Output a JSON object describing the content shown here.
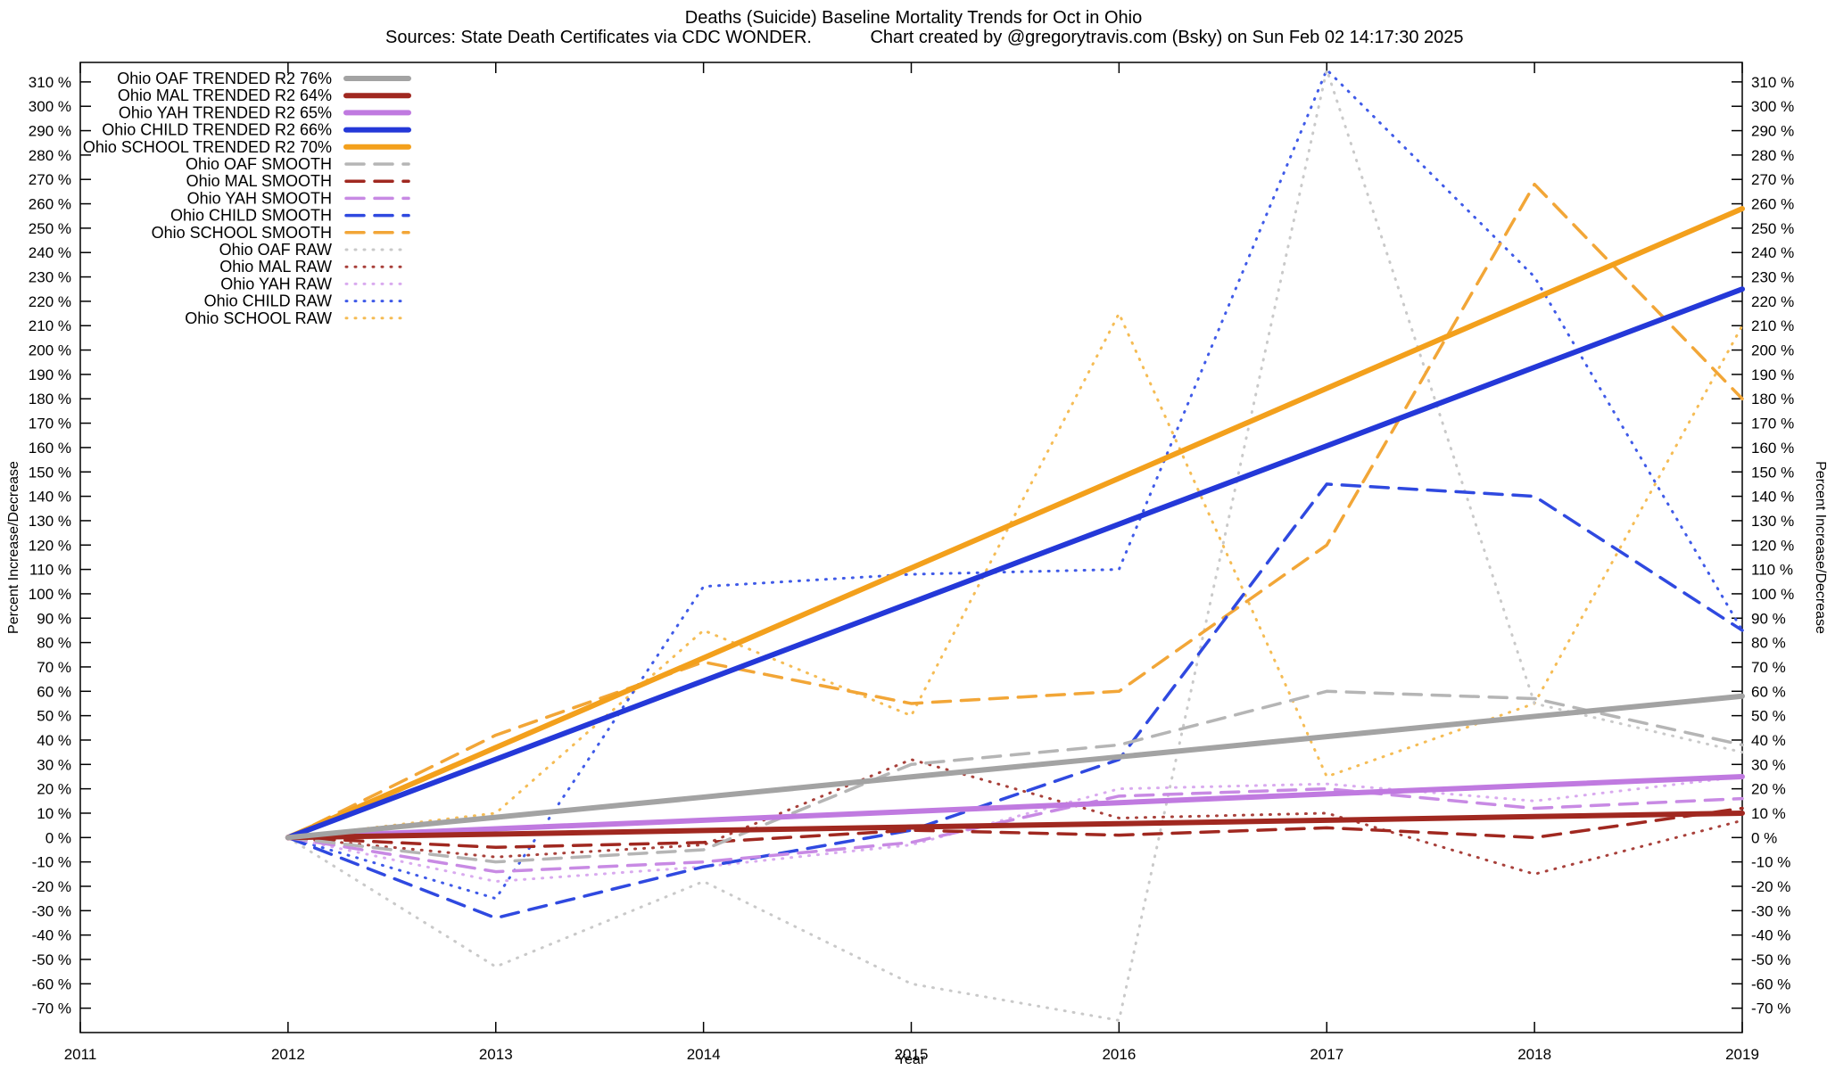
{
  "chart_data": {
    "type": "line",
    "title": "Deaths (Suicide)  Baseline Mortality Trends for Oct in Ohio",
    "subtitle_left": "Sources: State Death Certificates via CDC WONDER.",
    "subtitle_right": "Chart created by @gregorytravis.com (Bsky) on Sun Feb 02 14:17:30 2025",
    "xlabel": "Year",
    "ylabel_left": "Percent Increase/Decrease",
    "ylabel_right": "Percent Increase/Decrease",
    "xlim": [
      2011,
      2019
    ],
    "ylim": [
      -80,
      318
    ],
    "x_ticks": [
      2011,
      2012,
      2013,
      2014,
      2015,
      2016,
      2017,
      2018,
      2019
    ],
    "y_ticks": [
      -70,
      -60,
      -50,
      -40,
      -30,
      -20,
      -10,
      0,
      10,
      20,
      30,
      40,
      50,
      60,
      70,
      80,
      90,
      100,
      110,
      120,
      130,
      140,
      150,
      160,
      170,
      180,
      190,
      200,
      210,
      220,
      230,
      240,
      250,
      260,
      270,
      280,
      290,
      300,
      310
    ],
    "y_tick_suffix": " %",
    "legend_position": "top-left",
    "grid": false,
    "x": [
      2012,
      2013,
      2014,
      2015,
      2016,
      2017,
      2018,
      2019
    ],
    "series": [
      {
        "name": "ohio-oaf-trended",
        "legend": "Ohio OAF TRENDED R2  76%",
        "r2": "76%",
        "style": "solid",
        "width": 6,
        "color": "#a3a3a3",
        "values": [
          0,
          8.3,
          16.6,
          24.9,
          33.1,
          41.4,
          49.7,
          58
        ]
      },
      {
        "name": "ohio-mal-trended",
        "legend": "Ohio MAL TRENDED R2  64%",
        "r2": "64%",
        "style": "solid",
        "width": 6,
        "color": "#a02820",
        "values": [
          0,
          1.4,
          2.9,
          4.3,
          5.7,
          7.1,
          8.6,
          10
        ]
      },
      {
        "name": "ohio-yah-trended",
        "legend": "Ohio YAH TRENDED R2  65%",
        "r2": "65%",
        "style": "solid",
        "width": 6,
        "color": "#c07ae0",
        "values": [
          0,
          3.6,
          7.1,
          10.7,
          14.3,
          17.9,
          21.4,
          25
        ]
      },
      {
        "name": "ohio-child-trended",
        "legend": "Ohio CHILD TRENDED R2  66%",
        "r2": "66%",
        "style": "solid",
        "width": 6,
        "color": "#2438d8",
        "values": [
          0,
          32.1,
          64.3,
          96.4,
          128.6,
          160.7,
          192.9,
          225
        ]
      },
      {
        "name": "ohio-school-trended",
        "legend": "Ohio SCHOOL TRENDED R2  70%",
        "r2": "70%",
        "style": "solid",
        "width": 6,
        "color": "#f3a01c",
        "values": [
          0,
          36.9,
          73.7,
          110.6,
          147.4,
          184.3,
          221.1,
          258
        ]
      },
      {
        "name": "ohio-oaf-smooth",
        "legend": "Ohio OAF SMOOTH",
        "style": "dashed",
        "width": 3.5,
        "color": "#b5b5b5",
        "values": [
          0,
          -10,
          -5,
          30,
          38,
          60,
          57,
          38
        ]
      },
      {
        "name": "ohio-mal-smooth",
        "legend": "Ohio MAL SMOOTH",
        "style": "dashed",
        "width": 3.5,
        "color": "#a02820",
        "values": [
          0,
          -4,
          -2,
          3,
          1,
          4,
          0,
          12
        ]
      },
      {
        "name": "ohio-yah-smooth",
        "legend": "Ohio YAH SMOOTH",
        "style": "dashed",
        "width": 3.5,
        "color": "#c88ae4",
        "values": [
          0,
          -14,
          -10,
          -2,
          17,
          20,
          12,
          16
        ]
      },
      {
        "name": "ohio-child-smooth",
        "legend": "Ohio CHILD SMOOTH",
        "style": "dashed",
        "width": 3.5,
        "color": "#2f49e0",
        "values": [
          0,
          -33,
          -12,
          3,
          32,
          145,
          140,
          85
        ]
      },
      {
        "name": "ohio-school-smooth",
        "legend": "Ohio SCHOOL SMOOTH",
        "style": "dashed",
        "width": 3.5,
        "color": "#f2a637",
        "values": [
          0,
          42,
          72,
          55,
          60,
          120,
          268,
          180
        ]
      },
      {
        "name": "ohio-oaf-raw",
        "legend": "Ohio OAF RAW",
        "style": "dotted",
        "width": 3,
        "color": "#c9c9c9",
        "values": [
          0,
          -53,
          -18,
          -60,
          -75,
          315,
          55,
          35
        ]
      },
      {
        "name": "ohio-mal-raw",
        "legend": "Ohio MAL RAW",
        "style": "dotted",
        "width": 3,
        "color": "#a8403a",
        "values": [
          0,
          -8,
          -3,
          32,
          8,
          10,
          -15,
          7
        ]
      },
      {
        "name": "ohio-yah-raw",
        "legend": "Ohio YAH RAW",
        "style": "dotted",
        "width": 3,
        "color": "#d9aaef",
        "values": [
          0,
          -18,
          -12,
          -3,
          20,
          22,
          15,
          25
        ]
      },
      {
        "name": "ohio-child-raw",
        "legend": "Ohio CHILD RAW",
        "style": "dotted",
        "width": 3,
        "color": "#3f5ae8",
        "values": [
          0,
          -25,
          103,
          108,
          110,
          315,
          230,
          85
        ]
      },
      {
        "name": "ohio-school-raw",
        "legend": "Ohio SCHOOL RAW",
        "style": "dotted",
        "width": 3,
        "color": "#f5bc55",
        "values": [
          0,
          10,
          85,
          50,
          215,
          25,
          55,
          210
        ]
      }
    ]
  }
}
